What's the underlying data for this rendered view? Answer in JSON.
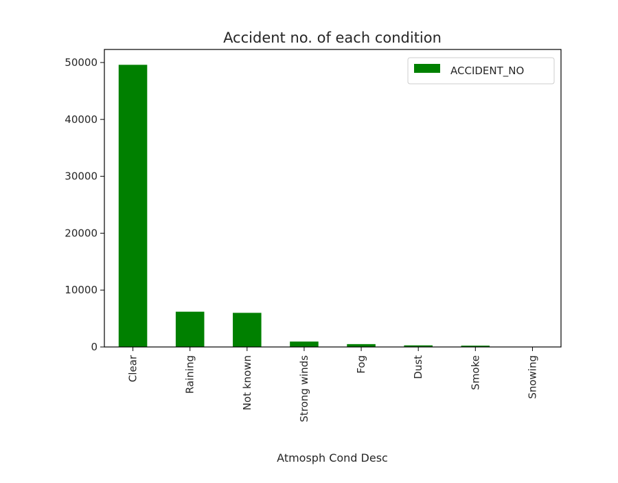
{
  "chart_data": {
    "type": "bar",
    "title": "Accident no. of each condition",
    "xlabel": "Atmosph Cond Desc",
    "ylabel": "",
    "categories": [
      "Clear",
      "Raining",
      "Not known",
      "Strong winds",
      "Fog",
      "Dust",
      "Smoke",
      "Snowing"
    ],
    "series": [
      {
        "name": "ACCIDENT_NO",
        "values": [
          49600,
          6200,
          6000,
          950,
          500,
          280,
          230,
          30
        ],
        "color": "#008000"
      }
    ],
    "ylim": [
      0,
      52000
    ],
    "yticks": [
      0,
      10000,
      20000,
      30000,
      40000,
      50000
    ],
    "ytick_labels": [
      "0",
      "10000",
      "20000",
      "30000",
      "40000",
      "50000"
    ],
    "grid": false,
    "legend": "top-right",
    "x_tick_rotation": 90
  }
}
